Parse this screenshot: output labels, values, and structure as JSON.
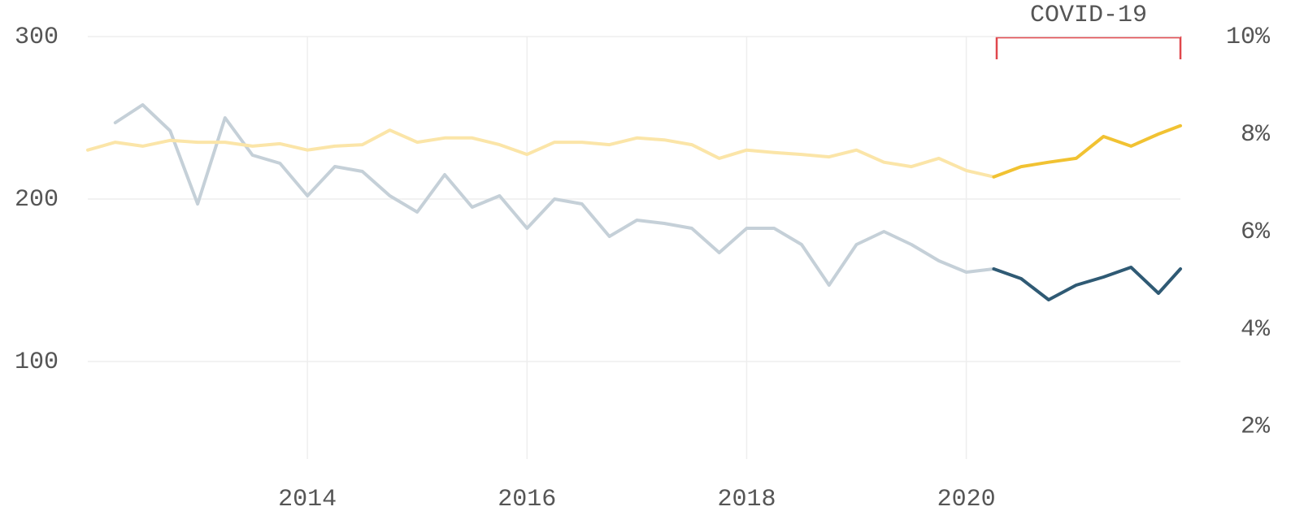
{
  "chart_data": {
    "type": "line",
    "annotation": "COVID-19",
    "x": [
      2012,
      2012.25,
      2012.5,
      2012.75,
      2013,
      2013.25,
      2013.5,
      2013.75,
      2014,
      2014.25,
      2014.5,
      2014.75,
      2015,
      2015.25,
      2015.5,
      2015.75,
      2016,
      2016.25,
      2016.5,
      2016.75,
      2017,
      2017.25,
      2017.5,
      2017.75,
      2018,
      2018.25,
      2018.5,
      2018.75,
      2019,
      2019.25,
      2019.5,
      2019.75,
      2020,
      2020.25,
      2020.5,
      2020.75,
      2021,
      2021.25,
      2021.5,
      2021.75,
      2021.95
    ],
    "xlim": [
      2012,
      2021.95
    ],
    "xticks": [
      2014,
      2016,
      2018,
      2020
    ],
    "ylim": [
      40,
      300
    ],
    "yticks": [
      100,
      200,
      300
    ],
    "y2lim": [
      1.33,
      10
    ],
    "y2ticks": [
      {
        "value": 2,
        "label": "2%"
      },
      {
        "value": 4,
        "label": "4%"
      },
      {
        "value": 6,
        "label": "6%"
      },
      {
        "value": 8,
        "label": "8%"
      },
      {
        "value": 10,
        "label": "10%"
      }
    ],
    "grid": true,
    "series": [
      {
        "color": "#c5d0d8",
        "values": [
          null,
          247,
          258,
          242,
          197,
          250,
          227,
          222,
          202,
          220,
          217,
          202,
          192,
          215,
          195,
          202,
          182,
          200,
          197,
          177,
          187,
          185,
          182,
          167,
          182,
          182,
          172,
          147,
          172,
          180,
          172,
          162,
          155,
          157,
          null,
          null,
          null,
          null,
          null,
          null,
          null
        ]
      },
      {
        "color": "#2f5a74",
        "values": [
          null,
          null,
          null,
          null,
          null,
          null,
          null,
          null,
          null,
          null,
          null,
          null,
          null,
          null,
          null,
          null,
          null,
          null,
          null,
          null,
          null,
          null,
          null,
          null,
          null,
          null,
          null,
          null,
          null,
          null,
          null,
          null,
          null,
          157,
          151,
          138,
          147,
          152,
          158,
          142,
          157
        ]
      },
      {
        "color": "#fbe5a8",
        "axis": "y2",
        "values": [
          7.67,
          7.83,
          7.75,
          7.87,
          7.83,
          7.83,
          7.75,
          7.8,
          7.67,
          7.75,
          7.78,
          8.08,
          7.83,
          7.92,
          7.92,
          7.78,
          7.58,
          7.83,
          7.83,
          7.78,
          7.92,
          7.88,
          7.78,
          7.5,
          7.67,
          7.62,
          7.58,
          7.53,
          7.67,
          7.42,
          7.33,
          7.5,
          7.25,
          7.12,
          null,
          null,
          null,
          null,
          null,
          null,
          null
        ]
      },
      {
        "color": "#f1c232",
        "axis": "y2",
        "values": [
          null,
          null,
          null,
          null,
          null,
          null,
          null,
          null,
          null,
          null,
          null,
          null,
          null,
          null,
          null,
          null,
          null,
          null,
          null,
          null,
          null,
          null,
          null,
          null,
          null,
          null,
          null,
          null,
          null,
          null,
          null,
          null,
          null,
          7.12,
          7.33,
          7.42,
          7.5,
          7.95,
          7.75,
          8.0,
          8.17
        ]
      }
    ]
  }
}
